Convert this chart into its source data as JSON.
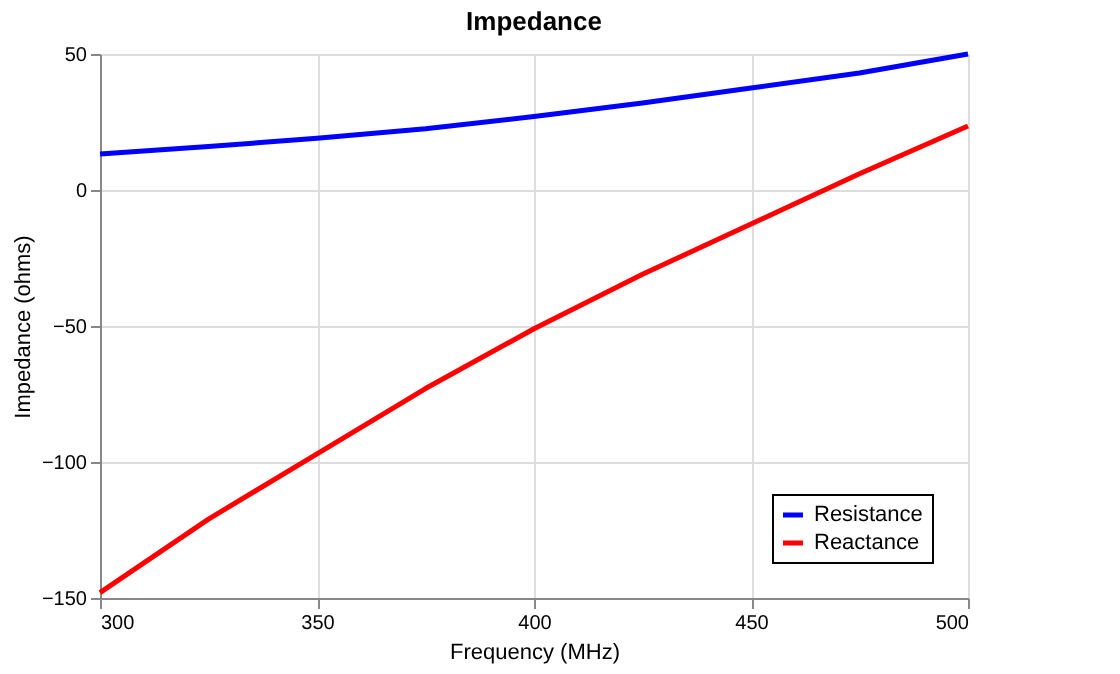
{
  "chart_data": {
    "type": "line",
    "title": "Impedance",
    "xlabel": "Frequency (MHz)",
    "ylabel": "Impedance (ohms)",
    "x": [
      300,
      325,
      350,
      375,
      400,
      425,
      450,
      475,
      500
    ],
    "series": [
      {
        "name": "Resistance",
        "color": "#0000ff",
        "values": [
          13.2,
          16,
          19,
          22.5,
          27,
          32,
          37.5,
          43,
          50
        ]
      },
      {
        "name": "Reactance",
        "color": "#ff0000",
        "values": [
          -148,
          -121,
          -97,
          -73,
          -51,
          -31,
          -12.5,
          6,
          23.5
        ]
      }
    ],
    "xlim": [
      300,
      500
    ],
    "xticks": [
      300,
      350,
      400,
      450,
      500
    ],
    "ylim": [
      -150,
      50
    ],
    "yticks": [
      -150,
      -100,
      -50,
      0,
      50
    ],
    "grid": true,
    "legend": "bottom right",
    "marker": "none",
    "line_style": "solid"
  }
}
